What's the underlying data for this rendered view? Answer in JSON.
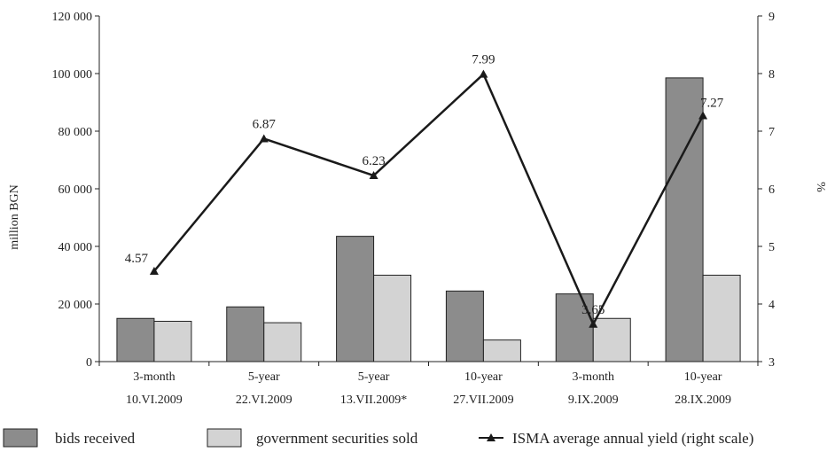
{
  "chart_data": {
    "type": "bar",
    "ylabel": "million BGN",
    "y2label": "%",
    "ylim": [
      0,
      120000
    ],
    "y2lim": [
      3,
      9
    ],
    "y_ticks": [
      "0",
      "20 000",
      "40 000",
      "60 000",
      "80 000",
      "100 000",
      "120 000"
    ],
    "y2_ticks": [
      "3",
      "4",
      "5",
      "6",
      "7",
      "8",
      "9"
    ],
    "categories": [
      {
        "type": "3-month",
        "date": "10.VI.2009"
      },
      {
        "type": "5-year",
        "date": "22.VI.2009"
      },
      {
        "type": "5-year",
        "date": "13.VII.2009*"
      },
      {
        "type": "10-year",
        "date": "27.VII.2009"
      },
      {
        "type": "3-month",
        "date": "9.IX.2009"
      },
      {
        "type": "10-year",
        "date": "28.IX.2009"
      }
    ],
    "series": [
      {
        "name": "bids received",
        "kind": "bar",
        "axis": "left",
        "color": "#8c8c8c",
        "values": [
          15000,
          19000,
          43500,
          24500,
          23500,
          98500
        ]
      },
      {
        "name": "government securities sold",
        "kind": "bar",
        "axis": "left",
        "color": "#d3d3d3",
        "values": [
          14000,
          13500,
          30000,
          7500,
          15000,
          30000
        ]
      },
      {
        "name": "ISMA average annual yield (right scale)",
        "kind": "line",
        "axis": "right",
        "color": "#1a1a1a",
        "values": [
          4.57,
          6.87,
          6.23,
          7.99,
          3.65,
          7.27
        ],
        "labels": [
          "4.57",
          "6.87",
          "6.23",
          "7.99",
          "3.65",
          "7.27"
        ]
      }
    ],
    "grid": false,
    "legend": "bottom"
  }
}
